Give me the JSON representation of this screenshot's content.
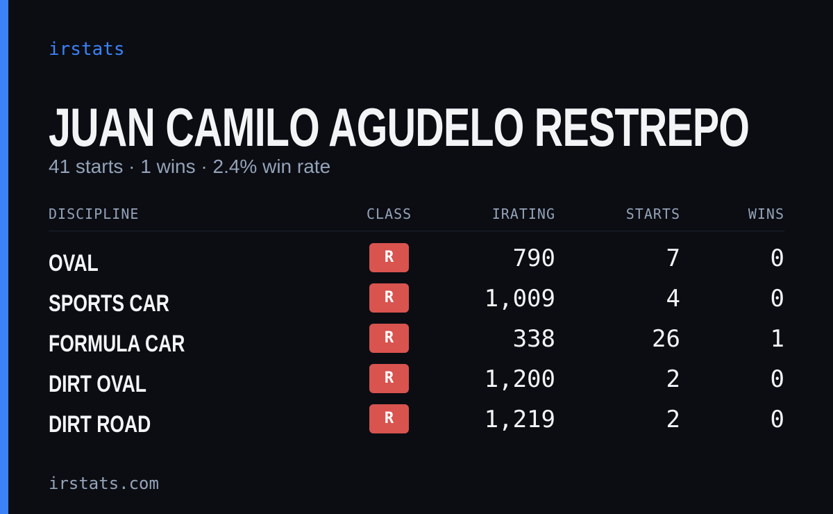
{
  "brand": "irstats",
  "header": {
    "title": "JUAN CAMILO AGUDELO RESTREPO",
    "subtitle": "41 starts · 1 wins · 2.4% win rate"
  },
  "table": {
    "columns": [
      "DISCIPLINE",
      "CLASS",
      "IRATING",
      "STARTS",
      "WINS"
    ],
    "rows": [
      [
        "OVAL",
        "R",
        "790",
        "7",
        "0"
      ],
      [
        "SPORTS CAR",
        "R",
        "1,009",
        "4",
        "0"
      ],
      [
        "FORMULA CAR",
        "R",
        "338",
        "26",
        "1"
      ],
      [
        "DIRT OVAL",
        "R",
        "1,200",
        "2",
        "0"
      ],
      [
        "DIRT ROAD",
        "R",
        "1,219",
        "2",
        "0"
      ]
    ]
  },
  "footer": "irstats.com"
}
